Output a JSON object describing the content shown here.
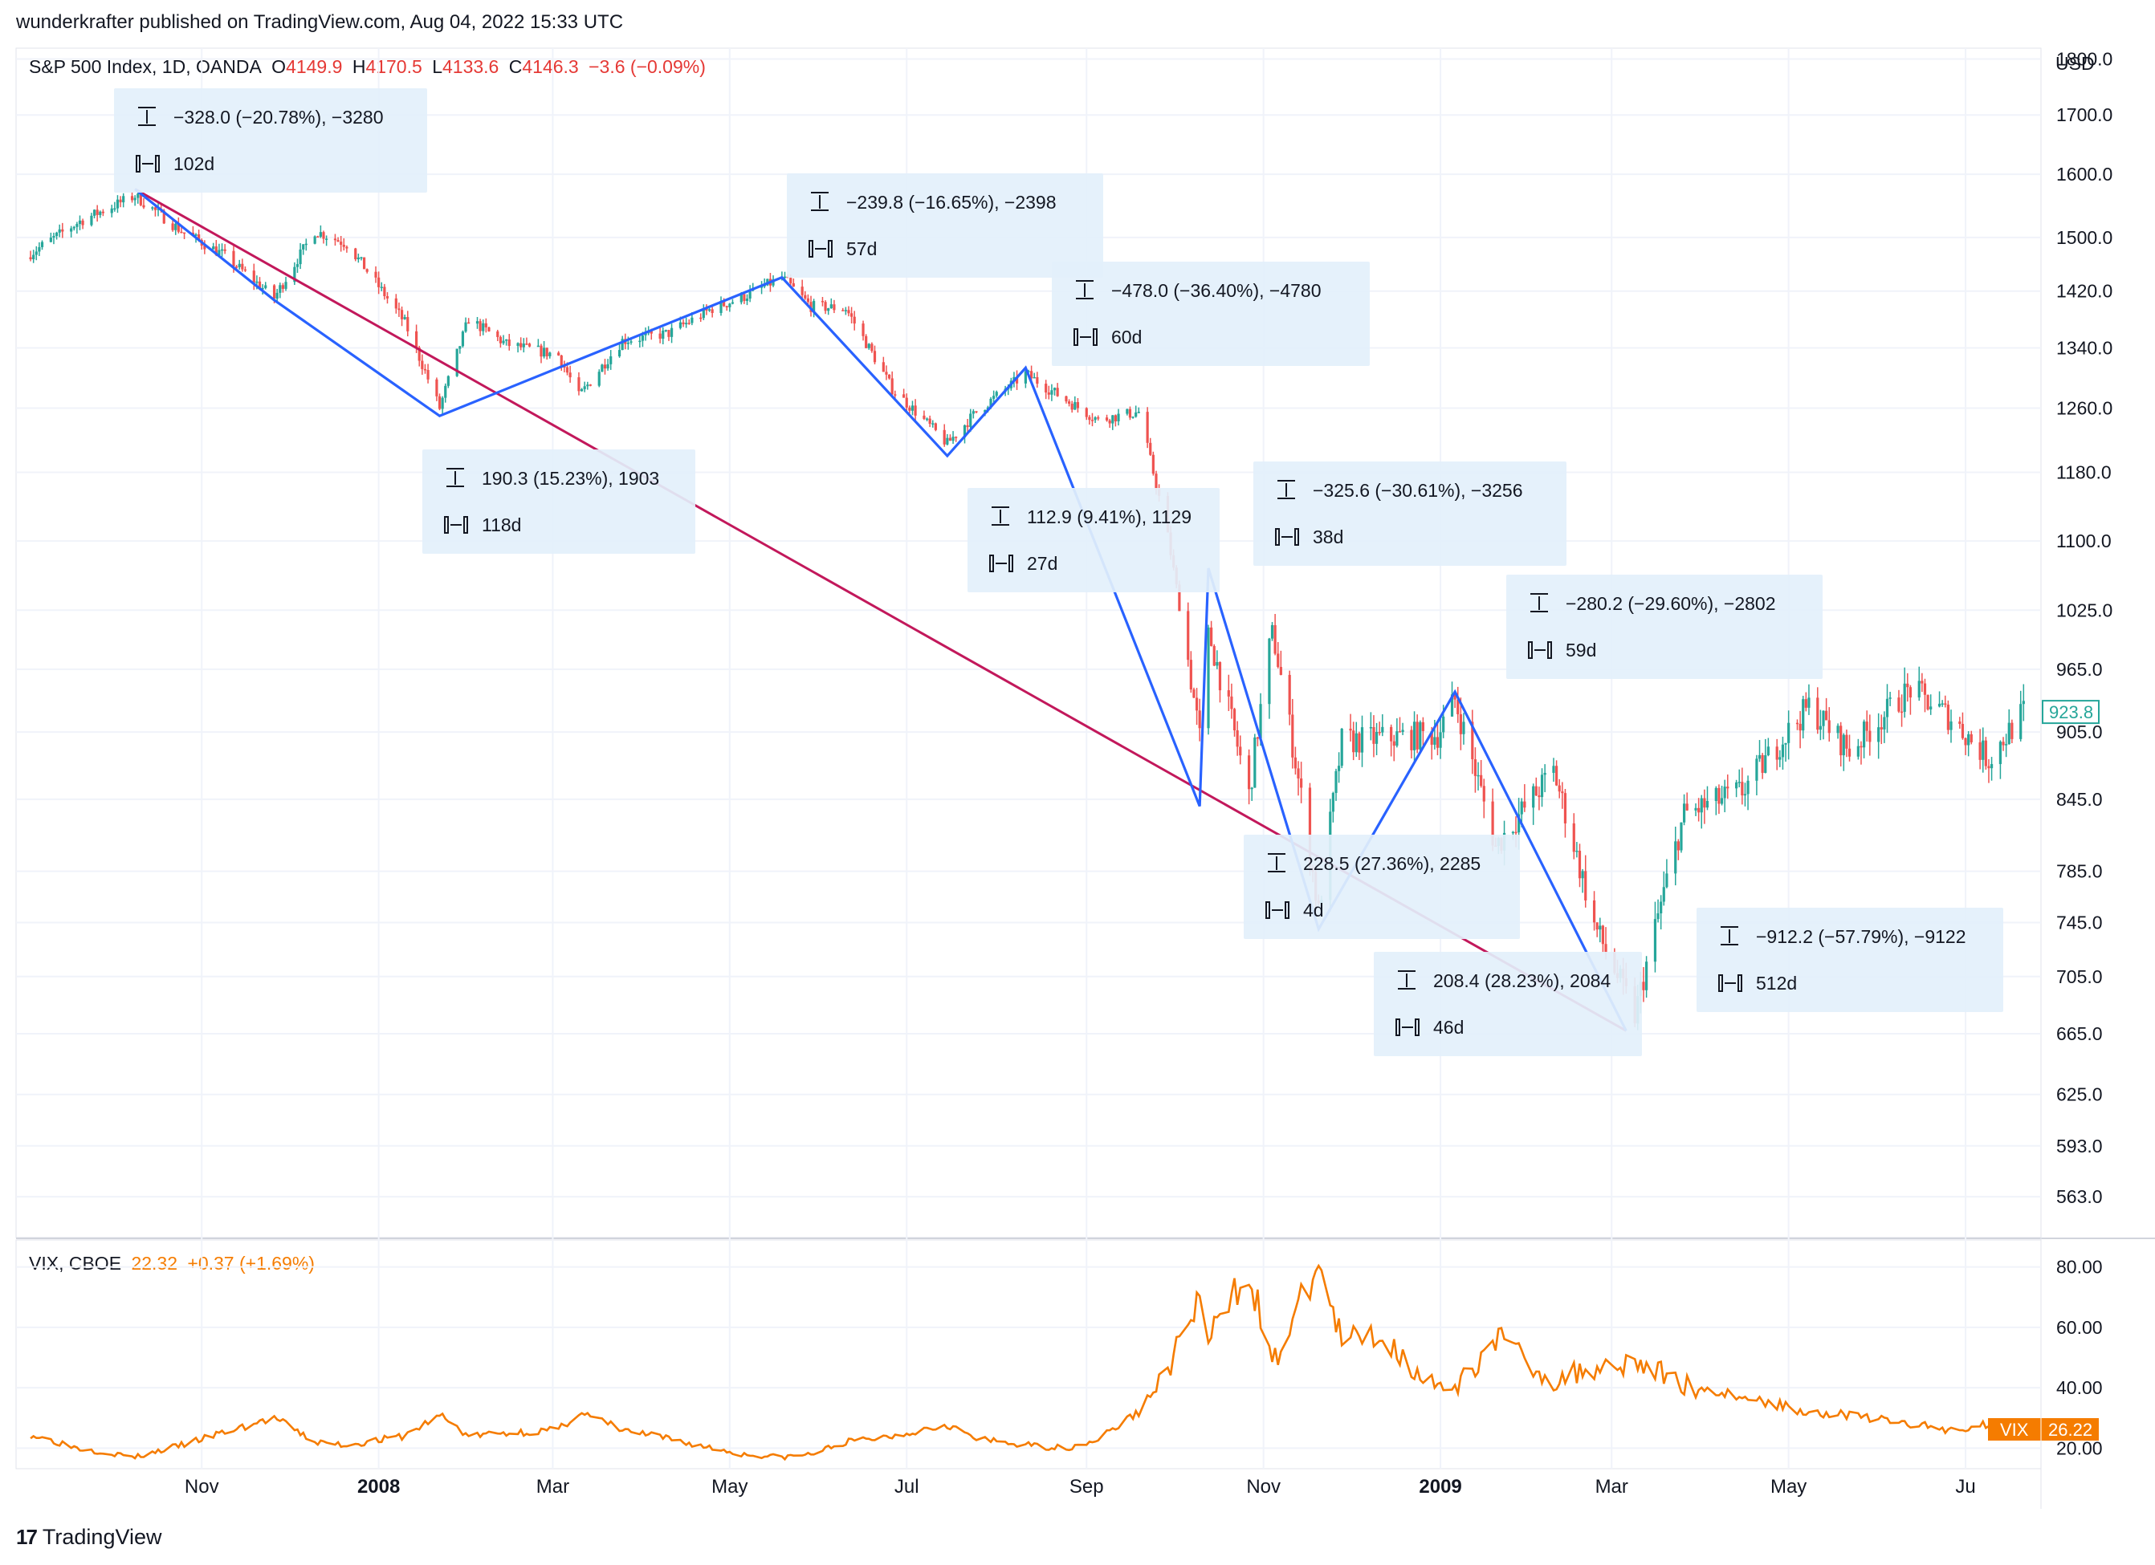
{
  "header": {
    "published": "wunderkrafter published on TradingView.com, Aug 04, 2022 15:33 UTC"
  },
  "main_legend": {
    "symbol": "S&P 500 Index, 1D, OANDA",
    "o_label": "O",
    "o_value": "4149.9",
    "h_label": "H",
    "h_value": "4170.5",
    "l_label": "L",
    "l_value": "4133.6",
    "c_label": "C",
    "c_value": "4146.3",
    "change": "−3.6 (−0.09%)"
  },
  "vix_legend": {
    "symbol": "VIX, CBOE",
    "value": "22.32",
    "change": "+0.37 (+1.69%)"
  },
  "currency": "USD",
  "brand": {
    "logo": "17",
    "name": "TradingView"
  },
  "colors": {
    "up": "#26a69a",
    "down": "#ef5350",
    "zigzag": "#2962ff",
    "trendline": "#c2185b",
    "vix": "#f57c00",
    "box_bg": "#e3f0fb",
    "grid": "#f0f3fa"
  },
  "chart_data": [
    {
      "type": "candlestick",
      "title": "S&P 500 Index, 1D, OANDA",
      "yscale": "log",
      "ylim": [
        540,
        1820
      ],
      "x_ticks": [
        "Nov",
        "2008",
        "Mar",
        "May",
        "Jul",
        "Sep",
        "Nov",
        "2009",
        "Mar",
        "May",
        "Ju"
      ],
      "y_ticks": [
        "1800.0",
        "1700.0",
        "1600.0",
        "1500.0",
        "1420.0",
        "1340.0",
        "1260.0",
        "1180.0",
        "1100.0",
        "1025.0",
        "965.0",
        "905.0",
        "845.0",
        "785.0",
        "745.0",
        "705.0",
        "665.0",
        "625.0",
        "593.0",
        "563.0"
      ],
      "last_price": "923.8",
      "close_series": [
        [
          "2007-09-01",
          1470
        ],
        [
          "2007-09-20",
          1525
        ],
        [
          "2007-10-09",
          1565
        ],
        [
          "2007-10-25",
          1510
        ],
        [
          "2007-11-08",
          1475
        ],
        [
          "2007-11-26",
          1410
        ],
        [
          "2007-12-10",
          1510
        ],
        [
          "2007-12-21",
          1490
        ],
        [
          "2008-01-10",
          1375
        ],
        [
          "2008-01-22",
          1260
        ],
        [
          "2008-02-01",
          1380
        ],
        [
          "2008-02-14",
          1345
        ],
        [
          "2008-03-03",
          1330
        ],
        [
          "2008-03-10",
          1275
        ],
        [
          "2008-03-25",
          1350
        ],
        [
          "2008-04-10",
          1360
        ],
        [
          "2008-04-25",
          1395
        ],
        [
          "2008-05-05",
          1410
        ],
        [
          "2008-05-19",
          1440
        ],
        [
          "2008-05-29",
          1398
        ],
        [
          "2008-06-10",
          1395
        ],
        [
          "2008-06-26",
          1285
        ],
        [
          "2008-07-15",
          1215
        ],
        [
          "2008-07-25",
          1255
        ],
        [
          "2008-08-11",
          1305
        ],
        [
          "2008-08-25",
          1270
        ],
        [
          "2008-09-05",
          1245
        ],
        [
          "2008-09-19",
          1255
        ],
        [
          "2008-09-29",
          1105
        ],
        [
          "2008-10-10",
          899
        ],
        [
          "2008-10-13",
          1003
        ],
        [
          "2008-10-27",
          848
        ],
        [
          "2008-11-04",
          1005
        ],
        [
          "2008-11-20",
          752
        ],
        [
          "2008-11-28",
          896
        ],
        [
          "2008-12-10",
          899
        ],
        [
          "2008-12-31",
          903
        ],
        [
          "2009-01-06",
          935
        ],
        [
          "2009-01-20",
          805
        ],
        [
          "2009-02-09",
          870
        ],
        [
          "2009-02-23",
          743
        ],
        [
          "2009-03-09",
          677
        ],
        [
          "2009-03-26",
          832
        ],
        [
          "2009-04-15",
          852
        ],
        [
          "2009-05-08",
          929
        ],
        [
          "2009-05-22",
          888
        ],
        [
          "2009-06-12",
          946
        ],
        [
          "2009-06-26",
          918
        ],
        [
          "2009-07-09",
          880
        ],
        [
          "2009-07-21",
          923.8
        ]
      ],
      "annotations": [
        {
          "change": "−328.0 (−20.78%), −3280",
          "bars": "102d"
        },
        {
          "change": "190.3 (15.23%), 1903",
          "bars": "118d"
        },
        {
          "change": "−239.8 (−16.65%), −2398",
          "bars": "57d"
        },
        {
          "change": "−478.0 (−36.40%), −4780",
          "bars": "60d"
        },
        {
          "change": "112.9 (9.41%), 1129",
          "bars": "27d"
        },
        {
          "change": "−325.6 (−30.61%), −3256",
          "bars": "38d"
        },
        {
          "change": "228.5 (27.36%), 2285",
          "bars": "4d"
        },
        {
          "change": "−280.2 (−29.60%), −2802",
          "bars": "59d"
        },
        {
          "change": "208.4 (28.23%), 2084",
          "bars": "46d"
        },
        {
          "change": "−912.2 (−57.79%), −9122",
          "bars": "512d"
        }
      ],
      "zigzag": [
        [
          "2007-10-09",
          1576
        ],
        [
          "2007-11-26",
          1407
        ],
        [
          "2008-01-22",
          1250
        ],
        [
          "2008-05-19",
          1440
        ],
        [
          "2008-07-15",
          1200
        ],
        [
          "2008-08-11",
          1313
        ],
        [
          "2008-10-10",
          839
        ],
        [
          "2008-10-13",
          1070
        ],
        [
          "2008-11-20",
          740
        ],
        [
          "2009-01-06",
          943
        ],
        [
          "2009-03-06",
          667
        ]
      ],
      "trendline": [
        [
          "2007-10-09",
          1576
        ],
        [
          "2009-03-06",
          667
        ]
      ]
    },
    {
      "type": "line",
      "title": "VIX, CBOE",
      "ylim": [
        14,
        86
      ],
      "y_ticks": [
        "80.00",
        "60.00",
        "40.00",
        "20.00"
      ],
      "last_label": "VIX",
      "last_value": "26.22",
      "series": [
        {
          "name": "VIX",
          "values": [
            [
              "2007-09-01",
              25
            ],
            [
              "2007-09-20",
              20
            ],
            [
              "2007-10-09",
              17
            ],
            [
              "2007-10-25",
              21
            ],
            [
              "2007-11-08",
              25
            ],
            [
              "2007-11-26",
              30
            ],
            [
              "2007-12-10",
              22
            ],
            [
              "2007-12-21",
              21
            ],
            [
              "2008-01-10",
              24
            ],
            [
              "2008-01-22",
              31
            ],
            [
              "2008-02-01",
              24
            ],
            [
              "2008-02-14",
              25
            ],
            [
              "2008-03-03",
              26
            ],
            [
              "2008-03-10",
              32
            ],
            [
              "2008-03-25",
              26
            ],
            [
              "2008-04-10",
              23
            ],
            [
              "2008-04-25",
              20
            ],
            [
              "2008-05-05",
              18
            ],
            [
              "2008-05-19",
              17
            ],
            [
              "2008-05-29",
              18
            ],
            [
              "2008-06-10",
              22
            ],
            [
              "2008-06-26",
              24
            ],
            [
              "2008-07-15",
              28
            ],
            [
              "2008-07-25",
              23
            ],
            [
              "2008-08-11",
              21
            ],
            [
              "2008-08-25",
              20
            ],
            [
              "2008-09-05",
              23
            ],
            [
              "2008-09-19",
              32
            ],
            [
              "2008-09-29",
              46
            ],
            [
              "2008-10-10",
              70
            ],
            [
              "2008-10-13",
              55
            ],
            [
              "2008-10-27",
              80
            ],
            [
              "2008-11-04",
              47
            ],
            [
              "2008-11-20",
              81
            ],
            [
              "2008-11-28",
              55
            ],
            [
              "2008-12-10",
              58
            ],
            [
              "2008-12-31",
              40
            ],
            [
              "2009-01-06",
              39
            ],
            [
              "2009-01-20",
              57
            ],
            [
              "2009-02-09",
              42
            ],
            [
              "2009-02-23",
              47
            ],
            [
              "2009-03-09",
              49
            ],
            [
              "2009-03-26",
              41
            ],
            [
              "2009-04-15",
              37
            ],
            [
              "2009-05-08",
              32
            ],
            [
              "2009-05-22",
              31
            ],
            [
              "2009-06-12",
              28
            ],
            [
              "2009-06-26",
              26
            ],
            [
              "2009-07-09",
              28
            ],
            [
              "2009-07-21",
              26.22
            ]
          ]
        }
      ]
    }
  ]
}
